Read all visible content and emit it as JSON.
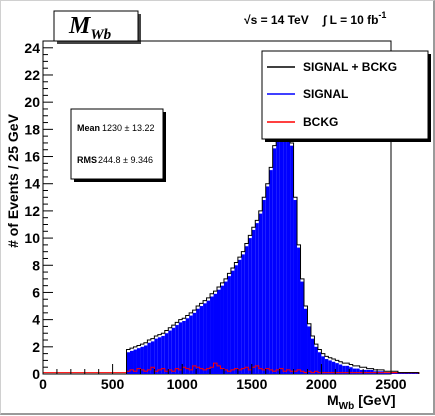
{
  "chart_data": {
    "type": "bar",
    "title": "M",
    "title_sub": "Wb",
    "header_energy": "√s = 14 TeV",
    "header_lumi": "∫ L = 10 fb",
    "header_lumi_sup": "-1",
    "xlabel": "M",
    "xlabel_sub": "Wb",
    "xlabel_unit": "[GeV]",
    "ylabel": "# of Events / 25 GeV",
    "xlim": [
      0,
      2500
    ],
    "ylim": [
      0,
      24.5
    ],
    "x_ticks": [
      0,
      500,
      1000,
      1500,
      2000,
      2500
    ],
    "y_ticks": [
      0,
      2,
      4,
      6,
      8,
      10,
      12,
      14,
      16,
      18,
      20,
      22,
      24
    ],
    "bin_width": 25,
    "x_start": 600,
    "series": [
      {
        "name": "SIGNAL + BCKG",
        "color": "#000000",
        "values": [
          1.8,
          1.9,
          2.0,
          2.1,
          2.2,
          2.3,
          2.5,
          2.6,
          2.8,
          2.9,
          3.0,
          3.2,
          3.4,
          3.6,
          3.8,
          4.0,
          4.1,
          4.3,
          4.5,
          4.7,
          5.0,
          5.2,
          5.4,
          5.6,
          5.9,
          6.1,
          6.4,
          6.7,
          7.0,
          7.4,
          7.8,
          8.2,
          8.6,
          9.0,
          9.6,
          10.2,
          10.8,
          11.3,
          12.0,
          13.0,
          14.0,
          15.2,
          16.8,
          19.0,
          21.5,
          23.2,
          21.0,
          17.0,
          13.0,
          9.5,
          7.0,
          5.0,
          3.7,
          2.8,
          2.2,
          1.8,
          1.5,
          1.3,
          1.2,
          1.1,
          1.0,
          0.9,
          0.8,
          0.8,
          0.7,
          0.6,
          0.6,
          0.5,
          0.5,
          0.4,
          0.4,
          0.3,
          0.3,
          0.3,
          0.2,
          0.2,
          0.2,
          0.2,
          0.1,
          0.1,
          0.1,
          0.1,
          0.1,
          0.1
        ]
      },
      {
        "name": "SIGNAL",
        "color": "#0000ff",
        "values": [
          1.6,
          1.7,
          1.8,
          1.9,
          2.0,
          2.1,
          2.3,
          2.4,
          2.6,
          2.7,
          2.8,
          3.0,
          3.2,
          3.4,
          3.6,
          3.8,
          3.9,
          4.1,
          4.3,
          4.5,
          4.8,
          5.0,
          5.2,
          5.4,
          5.7,
          5.9,
          6.2,
          6.5,
          6.8,
          7.2,
          7.6,
          8.0,
          8.4,
          8.8,
          9.4,
          10.0,
          10.6,
          11.1,
          11.8,
          12.8,
          13.8,
          15.0,
          16.6,
          18.8,
          21.3,
          23.0,
          20.8,
          16.8,
          12.8,
          9.3,
          6.8,
          4.8,
          3.5,
          2.6,
          2.0,
          1.6,
          1.3,
          1.1,
          1.0,
          0.9,
          0.8,
          0.7,
          0.6,
          0.6,
          0.5,
          0.4,
          0.4,
          0.3,
          0.3,
          0.3,
          0.3,
          0.2,
          0.2,
          0.2,
          0.1,
          0.1,
          0.1,
          0.1,
          0.1,
          0.1,
          0.1,
          0.1,
          0.1,
          0.1
        ]
      },
      {
        "name": "BCKG",
        "color": "#ff0000",
        "values": [
          0.2,
          0.3,
          0.2,
          0.4,
          0.3,
          0.2,
          0.3,
          0.5,
          0.2,
          0.3,
          0.4,
          0.2,
          0.3,
          0.2,
          0.4,
          0.3,
          0.5,
          0.4,
          0.3,
          0.6,
          0.5,
          0.4,
          0.3,
          0.4,
          0.5,
          0.8,
          0.6,
          0.4,
          0.3,
          0.2,
          0.3,
          0.4,
          0.3,
          0.4,
          0.5,
          0.3,
          0.5,
          0.6,
          0.4,
          0.3,
          0.4,
          0.3,
          0.2,
          0.3,
          0.4,
          0.2,
          0.3,
          0.2,
          0.2,
          0.3,
          0.2,
          0.1,
          0.2,
          0.1,
          0.2,
          0.1,
          0.1,
          0.1,
          0.1,
          0.1,
          0.1,
          0.1,
          0.1,
          0.1,
          0.1,
          0.1,
          0.1,
          0.1,
          0.1,
          0.1,
          0.1,
          0.1,
          0.1,
          0.1,
          0.1,
          0.1,
          0.1,
          0.1,
          0.1,
          0.1,
          0.1,
          0.1,
          0.1,
          0.1
        ]
      }
    ],
    "legend_placement": "top-right",
    "stats": {
      "mean_label": "Mean",
      "mean_value": "1230 ±  13.22",
      "rms_label": "RMS",
      "rms_value": "244.8 ±  9.346"
    }
  }
}
